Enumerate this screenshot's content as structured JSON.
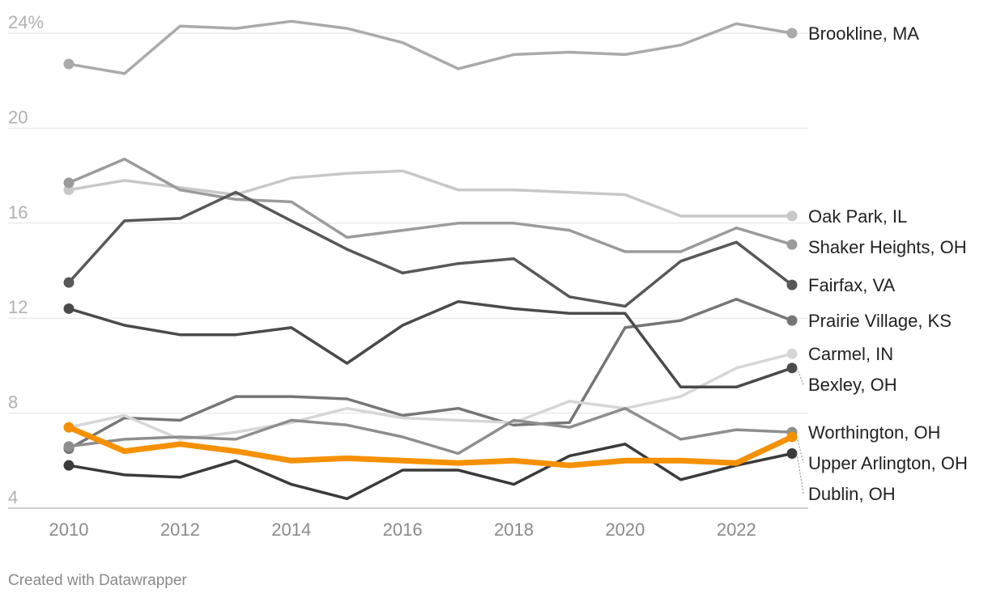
{
  "chart_data": {
    "type": "line",
    "title": "",
    "xlabel": "",
    "ylabel": "",
    "x": [
      2010,
      2011,
      2012,
      2013,
      2014,
      2015,
      2016,
      2017,
      2018,
      2019,
      2020,
      2021,
      2022,
      2023
    ],
    "xticks": [
      "2010",
      "2012",
      "2014",
      "2016",
      "2018",
      "2020",
      "2022"
    ],
    "yticks": [
      {
        "value": 4,
        "label": "4"
      },
      {
        "value": 8,
        "label": "8"
      },
      {
        "value": 12,
        "label": "12"
      },
      {
        "value": 16,
        "label": "16"
      },
      {
        "value": 20,
        "label": "20"
      },
      {
        "value": 24,
        "label": "24%"
      }
    ],
    "ylim": [
      4,
      24
    ],
    "grid": true,
    "legend": "direct labels at line ends (right)",
    "series": [
      {
        "name": "Brookline, MA",
        "color": "#aaaaaa",
        "values": [
          22.7,
          22.3,
          24.3,
          24.2,
          24.5,
          24.2,
          23.6,
          22.5,
          23.1,
          23.2,
          23.1,
          23.5,
          24.4,
          24.0
        ]
      },
      {
        "name": "Oak Park, IL",
        "color": "#c8c8c8",
        "values": [
          17.4,
          17.8,
          17.5,
          17.2,
          17.9,
          18.1,
          18.2,
          17.4,
          17.4,
          17.3,
          17.2,
          16.3,
          16.3,
          16.3
        ]
      },
      {
        "name": "Shaker Heights, OH",
        "color": "#9b9b9b",
        "values": [
          17.7,
          18.7,
          17.4,
          17.0,
          16.9,
          15.4,
          15.7,
          16.0,
          16.0,
          15.7,
          14.8,
          14.8,
          15.8,
          15.1
        ]
      },
      {
        "name": "Fairfax, VA",
        "color": "#585858",
        "values": [
          13.5,
          16.1,
          16.2,
          17.3,
          16.1,
          14.9,
          13.9,
          14.3,
          14.5,
          12.9,
          12.5,
          14.4,
          15.2,
          13.4
        ]
      },
      {
        "name": "Prairie Village, KS",
        "color": "#767676",
        "values": [
          6.5,
          7.8,
          7.7,
          8.7,
          8.7,
          8.6,
          7.9,
          8.2,
          7.5,
          7.6,
          11.6,
          11.9,
          12.8,
          11.9
        ]
      },
      {
        "name": "Carmel, IN",
        "color": "#d6d6d6",
        "values": [
          7.4,
          7.9,
          6.9,
          7.2,
          7.6,
          8.2,
          7.8,
          7.7,
          7.6,
          8.5,
          8.2,
          8.7,
          9.9,
          10.5
        ]
      },
      {
        "name": "Bexley, OH",
        "color": "#4a4a4a",
        "values": [
          12.4,
          11.7,
          11.3,
          11.3,
          11.6,
          10.1,
          11.7,
          12.7,
          12.4,
          12.2,
          12.2,
          9.1,
          9.1,
          9.9
        ]
      },
      {
        "name": "Worthington, OH",
        "color": "#8e8e8e",
        "values": [
          6.6,
          6.9,
          7.0,
          6.9,
          7.7,
          7.5,
          7.0,
          6.3,
          7.7,
          7.4,
          8.2,
          6.9,
          7.3,
          7.2
        ]
      },
      {
        "name": "Dublin, OH",
        "color": "#3a3a3a",
        "values": [
          5.8,
          5.4,
          5.3,
          6.0,
          5.0,
          4.4,
          5.6,
          5.6,
          5.0,
          6.2,
          6.7,
          5.2,
          5.8,
          6.3
        ]
      },
      {
        "name": "Upper Arlington, OH",
        "color": "#f59100",
        "values": [
          7.4,
          6.4,
          6.7,
          6.4,
          6.0,
          6.1,
          6.0,
          5.9,
          6.0,
          5.8,
          6.0,
          6.0,
          5.9,
          7.0
        ]
      }
    ],
    "label_order": [
      "Brookline, MA",
      "Oak Park, IL",
      "Shaker Heights, OH",
      "Fairfax, VA",
      "Prairie Village, KS",
      "Carmel, IN",
      "Bexley, OH",
      "Worthington, OH",
      "Upper Arlington, OH",
      "Dublin, OH"
    ]
  },
  "footer": {
    "credit": "Created with Datawrapper"
  }
}
